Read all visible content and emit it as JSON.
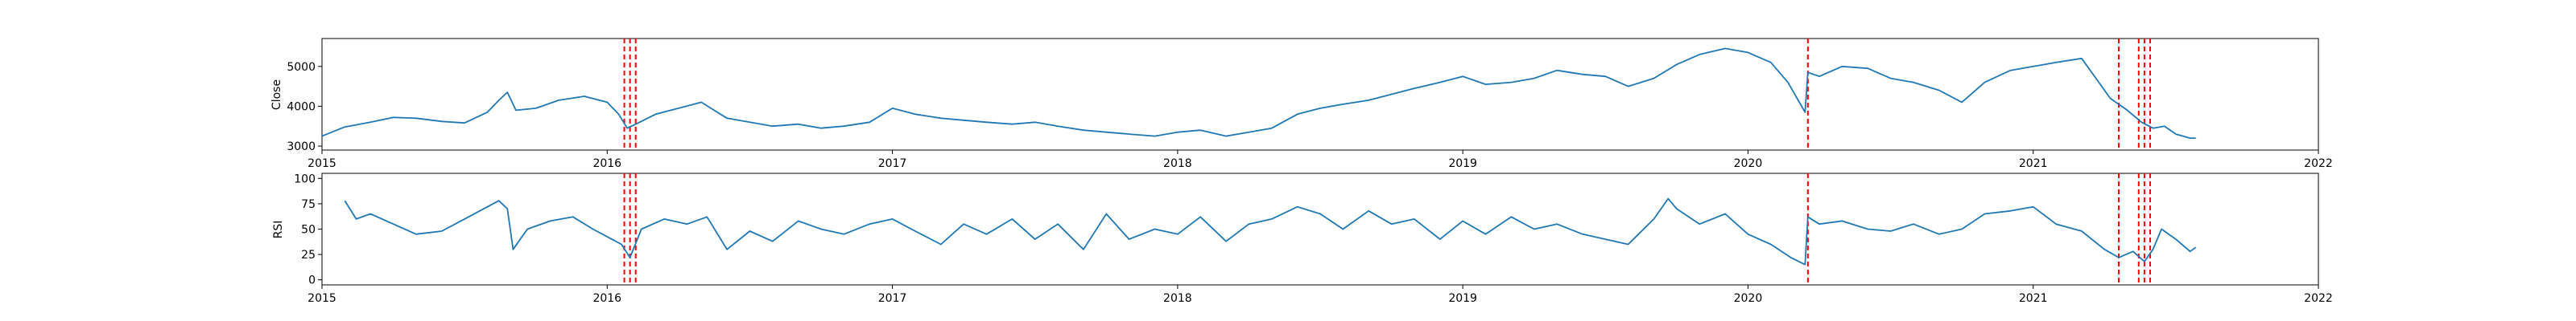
{
  "chart_data": [
    {
      "type": "line",
      "title": "",
      "xlabel": "",
      "ylabel": "Close",
      "x_start": 2015.0,
      "x_end": 2021.57,
      "xlim": [
        2015,
        2022
      ],
      "ylim": [
        2900,
        5700
      ],
      "yticks": [
        3000,
        4000,
        5000
      ],
      "xtick_labels": [
        "2015",
        "2016",
        "2017",
        "2018",
        "2019",
        "2020",
        "2021",
        "2022"
      ],
      "series": [
        {
          "name": "Close",
          "color": "#1f77b4",
          "points": [
            [
              2015.0,
              3250
            ],
            [
              2015.08,
              3480
            ],
            [
              2015.17,
              3600
            ],
            [
              2015.25,
              3720
            ],
            [
              2015.33,
              3700
            ],
            [
              2015.42,
              3620
            ],
            [
              2015.5,
              3580
            ],
            [
              2015.58,
              3850
            ],
            [
              2015.62,
              4150
            ],
            [
              2015.65,
              4350
            ],
            [
              2015.68,
              3900
            ],
            [
              2015.75,
              3950
            ],
            [
              2015.83,
              4150
            ],
            [
              2015.92,
              4250
            ],
            [
              2016.0,
              4100
            ],
            [
              2016.04,
              3800
            ],
            [
              2016.07,
              3450
            ],
            [
              2016.1,
              3550
            ],
            [
              2016.17,
              3800
            ],
            [
              2016.25,
              3950
            ],
            [
              2016.33,
              4100
            ],
            [
              2016.42,
              3700
            ],
            [
              2016.5,
              3600
            ],
            [
              2016.58,
              3500
            ],
            [
              2016.67,
              3550
            ],
            [
              2016.75,
              3450
            ],
            [
              2016.83,
              3500
            ],
            [
              2016.92,
              3600
            ],
            [
              2017.0,
              3950
            ],
            [
              2017.08,
              3800
            ],
            [
              2017.17,
              3700
            ],
            [
              2017.25,
              3650
            ],
            [
              2017.33,
              3600
            ],
            [
              2017.42,
              3550
            ],
            [
              2017.5,
              3600
            ],
            [
              2017.58,
              3500
            ],
            [
              2017.67,
              3400
            ],
            [
              2017.75,
              3350
            ],
            [
              2017.83,
              3300
            ],
            [
              2017.92,
              3250
            ],
            [
              2018.0,
              3350
            ],
            [
              2018.08,
              3400
            ],
            [
              2018.17,
              3250
            ],
            [
              2018.25,
              3350
            ],
            [
              2018.33,
              3450
            ],
            [
              2018.42,
              3800
            ],
            [
              2018.5,
              3950
            ],
            [
              2018.58,
              4050
            ],
            [
              2018.67,
              4150
            ],
            [
              2018.75,
              4300
            ],
            [
              2018.83,
              4450
            ],
            [
              2018.92,
              4600
            ],
            [
              2019.0,
              4750
            ],
            [
              2019.08,
              4550
            ],
            [
              2019.17,
              4600
            ],
            [
              2019.25,
              4700
            ],
            [
              2019.33,
              4900
            ],
            [
              2019.42,
              4800
            ],
            [
              2019.5,
              4750
            ],
            [
              2019.58,
              4500
            ],
            [
              2019.67,
              4700
            ],
            [
              2019.75,
              5050
            ],
            [
              2019.83,
              5300
            ],
            [
              2019.92,
              5450
            ],
            [
              2020.0,
              5350
            ],
            [
              2020.08,
              5100
            ],
            [
              2020.14,
              4600
            ],
            [
              2020.2,
              3850
            ],
            [
              2020.21,
              4850
            ],
            [
              2020.25,
              4750
            ],
            [
              2020.33,
              5000
            ],
            [
              2020.42,
              4950
            ],
            [
              2020.5,
              4700
            ],
            [
              2020.58,
              4600
            ],
            [
              2020.67,
              4400
            ],
            [
              2020.75,
              4100
            ],
            [
              2020.83,
              4600
            ],
            [
              2020.92,
              4900
            ],
            [
              2021.0,
              5000
            ],
            [
              2021.08,
              5100
            ],
            [
              2021.17,
              5200
            ],
            [
              2021.22,
              4700
            ],
            [
              2021.27,
              4200
            ],
            [
              2021.33,
              3900
            ],
            [
              2021.38,
              3600
            ],
            [
              2021.42,
              3450
            ],
            [
              2021.46,
              3500
            ],
            [
              2021.5,
              3300
            ],
            [
              2021.55,
              3200
            ],
            [
              2021.57,
              3200
            ]
          ]
        }
      ],
      "vlines": [
        2016.06,
        2016.08,
        2016.1,
        2020.21,
        2021.3,
        2021.37,
        2021.39,
        2021.41
      ],
      "vline_color": "#ff0000"
    },
    {
      "type": "line",
      "title": "",
      "xlabel": "",
      "ylabel": "RSI",
      "x_start": 2015.0,
      "x_end": 2021.57,
      "xlim": [
        2015,
        2022
      ],
      "ylim": [
        -5,
        105
      ],
      "yticks": [
        0,
        25,
        50,
        75,
        100
      ],
      "xtick_labels": [
        "2015",
        "2016",
        "2017",
        "2018",
        "2019",
        "2020",
        "2021",
        "2022"
      ],
      "series": [
        {
          "name": "RSI",
          "color": "#1f77b4",
          "points": [
            [
              2015.08,
              78
            ],
            [
              2015.12,
              60
            ],
            [
              2015.17,
              65
            ],
            [
              2015.25,
              55
            ],
            [
              2015.33,
              45
            ],
            [
              2015.42,
              48
            ],
            [
              2015.5,
              60
            ],
            [
              2015.58,
              72
            ],
            [
              2015.62,
              78
            ],
            [
              2015.65,
              70
            ],
            [
              2015.67,
              30
            ],
            [
              2015.72,
              50
            ],
            [
              2015.8,
              58
            ],
            [
              2015.88,
              62
            ],
            [
              2015.95,
              50
            ],
            [
              2016.05,
              35
            ],
            [
              2016.08,
              22
            ],
            [
              2016.12,
              50
            ],
            [
              2016.2,
              60
            ],
            [
              2016.28,
              55
            ],
            [
              2016.35,
              62
            ],
            [
              2016.42,
              30
            ],
            [
              2016.5,
              48
            ],
            [
              2016.58,
              38
            ],
            [
              2016.67,
              58
            ],
            [
              2016.75,
              50
            ],
            [
              2016.83,
              45
            ],
            [
              2016.92,
              55
            ],
            [
              2017.0,
              60
            ],
            [
              2017.08,
              48
            ],
            [
              2017.17,
              35
            ],
            [
              2017.25,
              55
            ],
            [
              2017.33,
              45
            ],
            [
              2017.42,
              60
            ],
            [
              2017.5,
              40
            ],
            [
              2017.58,
              55
            ],
            [
              2017.67,
              30
            ],
            [
              2017.75,
              65
            ],
            [
              2017.83,
              40
            ],
            [
              2017.92,
              50
            ],
            [
              2018.0,
              45
            ],
            [
              2018.08,
              62
            ],
            [
              2018.17,
              38
            ],
            [
              2018.25,
              55
            ],
            [
              2018.33,
              60
            ],
            [
              2018.42,
              72
            ],
            [
              2018.5,
              65
            ],
            [
              2018.58,
              50
            ],
            [
              2018.67,
              68
            ],
            [
              2018.75,
              55
            ],
            [
              2018.83,
              60
            ],
            [
              2018.92,
              40
            ],
            [
              2019.0,
              58
            ],
            [
              2019.08,
              45
            ],
            [
              2019.17,
              62
            ],
            [
              2019.25,
              50
            ],
            [
              2019.33,
              55
            ],
            [
              2019.42,
              45
            ],
            [
              2019.5,
              40
            ],
            [
              2019.58,
              35
            ],
            [
              2019.67,
              60
            ],
            [
              2019.72,
              80
            ],
            [
              2019.75,
              70
            ],
            [
              2019.83,
              55
            ],
            [
              2019.92,
              65
            ],
            [
              2020.0,
              45
            ],
            [
              2020.08,
              35
            ],
            [
              2020.15,
              22
            ],
            [
              2020.2,
              15
            ],
            [
              2020.21,
              62
            ],
            [
              2020.25,
              55
            ],
            [
              2020.33,
              58
            ],
            [
              2020.42,
              50
            ],
            [
              2020.5,
              48
            ],
            [
              2020.58,
              55
            ],
            [
              2020.67,
              45
            ],
            [
              2020.75,
              50
            ],
            [
              2020.83,
              65
            ],
            [
              2020.92,
              68
            ],
            [
              2021.0,
              72
            ],
            [
              2021.08,
              55
            ],
            [
              2021.17,
              48
            ],
            [
              2021.25,
              30
            ],
            [
              2021.3,
              22
            ],
            [
              2021.35,
              28
            ],
            [
              2021.39,
              18
            ],
            [
              2021.42,
              30
            ],
            [
              2021.45,
              50
            ],
            [
              2021.5,
              40
            ],
            [
              2021.55,
              28
            ],
            [
              2021.57,
              32
            ]
          ]
        }
      ],
      "vlines": [
        2016.06,
        2016.08,
        2016.1,
        2020.21,
        2021.3,
        2021.37,
        2021.39,
        2021.41
      ],
      "vline_color": "#ff0000"
    }
  ]
}
